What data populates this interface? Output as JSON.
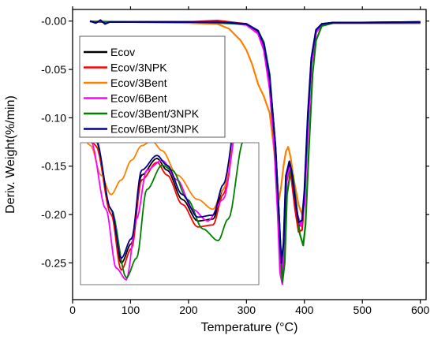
{
  "chart_data": {
    "type": "line",
    "xlabel": "Temperature (°C)",
    "ylabel": "Deriv. Weight(%/min)",
    "xlim": [
      0,
      610
    ],
    "ylim": [
      -0.288,
      0.012
    ],
    "xticks": [
      0,
      100,
      200,
      300,
      400,
      500,
      600
    ],
    "xtick_labels": [
      "0",
      "100",
      "200",
      "300",
      "400",
      "500",
      "600"
    ],
    "yticks": [
      0.0,
      -0.05,
      -0.1,
      -0.15,
      -0.2,
      -0.25
    ],
    "ytick_labels": [
      "-0.00",
      "-0.05",
      "-0.10",
      "-0.15",
      "-0.20",
      "-0.25"
    ],
    "grid": false,
    "legend_position": "top-left",
    "series": [
      {
        "name": "Ecov",
        "color": "#000000",
        "x": [
          30,
          50,
          100,
          200,
          250,
          300,
          320,
          330,
          340,
          350,
          356,
          360,
          364,
          368,
          374,
          378,
          384,
          390,
          396,
          400,
          406,
          412,
          420,
          430,
          450,
          500,
          600
        ],
        "y": [
          -0.0005,
          -0.0008,
          -0.0008,
          -0.001,
          -0.001,
          -0.003,
          -0.01,
          -0.025,
          -0.06,
          -0.13,
          -0.2,
          -0.255,
          -0.235,
          -0.165,
          -0.148,
          -0.16,
          -0.19,
          -0.212,
          -0.21,
          -0.18,
          -0.1,
          -0.04,
          -0.01,
          -0.003,
          -0.0015,
          -0.0015,
          -0.001
        ]
      },
      {
        "name": "Ecov/3NPK",
        "color": "#ff0000",
        "x": [
          30,
          50,
          100,
          200,
          250,
          300,
          320,
          330,
          340,
          350,
          356,
          360,
          364,
          368,
          374,
          378,
          384,
          390,
          396,
          400,
          406,
          412,
          420,
          430,
          450,
          500,
          600
        ],
        "y": [
          -0.0005,
          -0.001,
          -0.001,
          -0.001,
          0.0005,
          -0.003,
          -0.011,
          -0.027,
          -0.062,
          -0.135,
          -0.205,
          -0.262,
          -0.24,
          -0.17,
          -0.152,
          -0.165,
          -0.195,
          -0.218,
          -0.216,
          -0.185,
          -0.105,
          -0.042,
          -0.011,
          -0.003,
          -0.002,
          -0.002,
          -0.002
        ]
      },
      {
        "name": "Ecov/3Bent",
        "color": "#ff8000",
        "x": [
          30,
          100,
          200,
          250,
          270,
          290,
          300,
          310,
          320,
          330,
          340,
          348,
          352,
          356,
          360,
          364,
          368,
          372,
          376,
          382,
          390,
          396,
          400,
          406,
          412,
          420,
          430,
          450,
          500,
          600
        ],
        "y": [
          -0.0005,
          -0.001,
          -0.002,
          -0.003,
          -0.008,
          -0.02,
          -0.03,
          -0.045,
          -0.065,
          -0.078,
          -0.095,
          -0.135,
          -0.165,
          -0.185,
          -0.17,
          -0.15,
          -0.135,
          -0.13,
          -0.14,
          -0.165,
          -0.19,
          -0.2,
          -0.18,
          -0.1,
          -0.04,
          -0.012,
          -0.004,
          -0.002,
          -0.002,
          -0.002
        ]
      },
      {
        "name": "Ecov/6Bent",
        "color": "#ff00ff",
        "x": [
          30,
          100,
          200,
          250,
          300,
          320,
          330,
          340,
          348,
          354,
          358,
          362,
          366,
          370,
          376,
          382,
          388,
          394,
          400,
          406,
          412,
          420,
          430,
          450,
          500,
          600
        ],
        "y": [
          -0.0005,
          -0.001,
          -0.001,
          -0.0008,
          -0.004,
          -0.013,
          -0.03,
          -0.07,
          -0.13,
          -0.2,
          -0.26,
          -0.272,
          -0.21,
          -0.16,
          -0.15,
          -0.17,
          -0.2,
          -0.212,
          -0.19,
          -0.11,
          -0.045,
          -0.012,
          -0.004,
          -0.002,
          -0.002,
          -0.002
        ]
      },
      {
        "name": "Ecov/3Bent/3NPK",
        "color": "#008000",
        "x": [
          30,
          100,
          200,
          250,
          300,
          320,
          330,
          340,
          350,
          356,
          362,
          366,
          370,
          376,
          380,
          386,
          392,
          398,
          402,
          408,
          414,
          420,
          430,
          450,
          500,
          600
        ],
        "y": [
          -0.0005,
          -0.001,
          -0.001,
          -0.002,
          -0.003,
          -0.01,
          -0.022,
          -0.055,
          -0.13,
          -0.2,
          -0.27,
          -0.25,
          -0.18,
          -0.155,
          -0.16,
          -0.19,
          -0.22,
          -0.232,
          -0.21,
          -0.13,
          -0.055,
          -0.02,
          -0.005,
          -0.002,
          -0.002,
          -0.002
        ]
      },
      {
        "name": "Ecov/6Bent/3NPK",
        "color": "#00008b",
        "x": [
          30,
          40,
          48,
          56,
          64,
          100,
          200,
          250,
          300,
          320,
          330,
          340,
          350,
          356,
          360,
          364,
          368,
          374,
          378,
          384,
          390,
          396,
          400,
          406,
          412,
          420,
          430,
          450,
          500,
          600
        ],
        "y": [
          0.0,
          -0.002,
          0.001,
          -0.003,
          -0.001,
          -0.001,
          -0.001,
          -0.001,
          -0.003,
          -0.01,
          -0.024,
          -0.058,
          -0.128,
          -0.2,
          -0.25,
          -0.23,
          -0.16,
          -0.145,
          -0.155,
          -0.185,
          -0.208,
          -0.206,
          -0.175,
          -0.095,
          -0.038,
          -0.009,
          -0.003,
          -0.0015,
          -0.0015,
          -0.001
        ]
      }
    ]
  }
}
